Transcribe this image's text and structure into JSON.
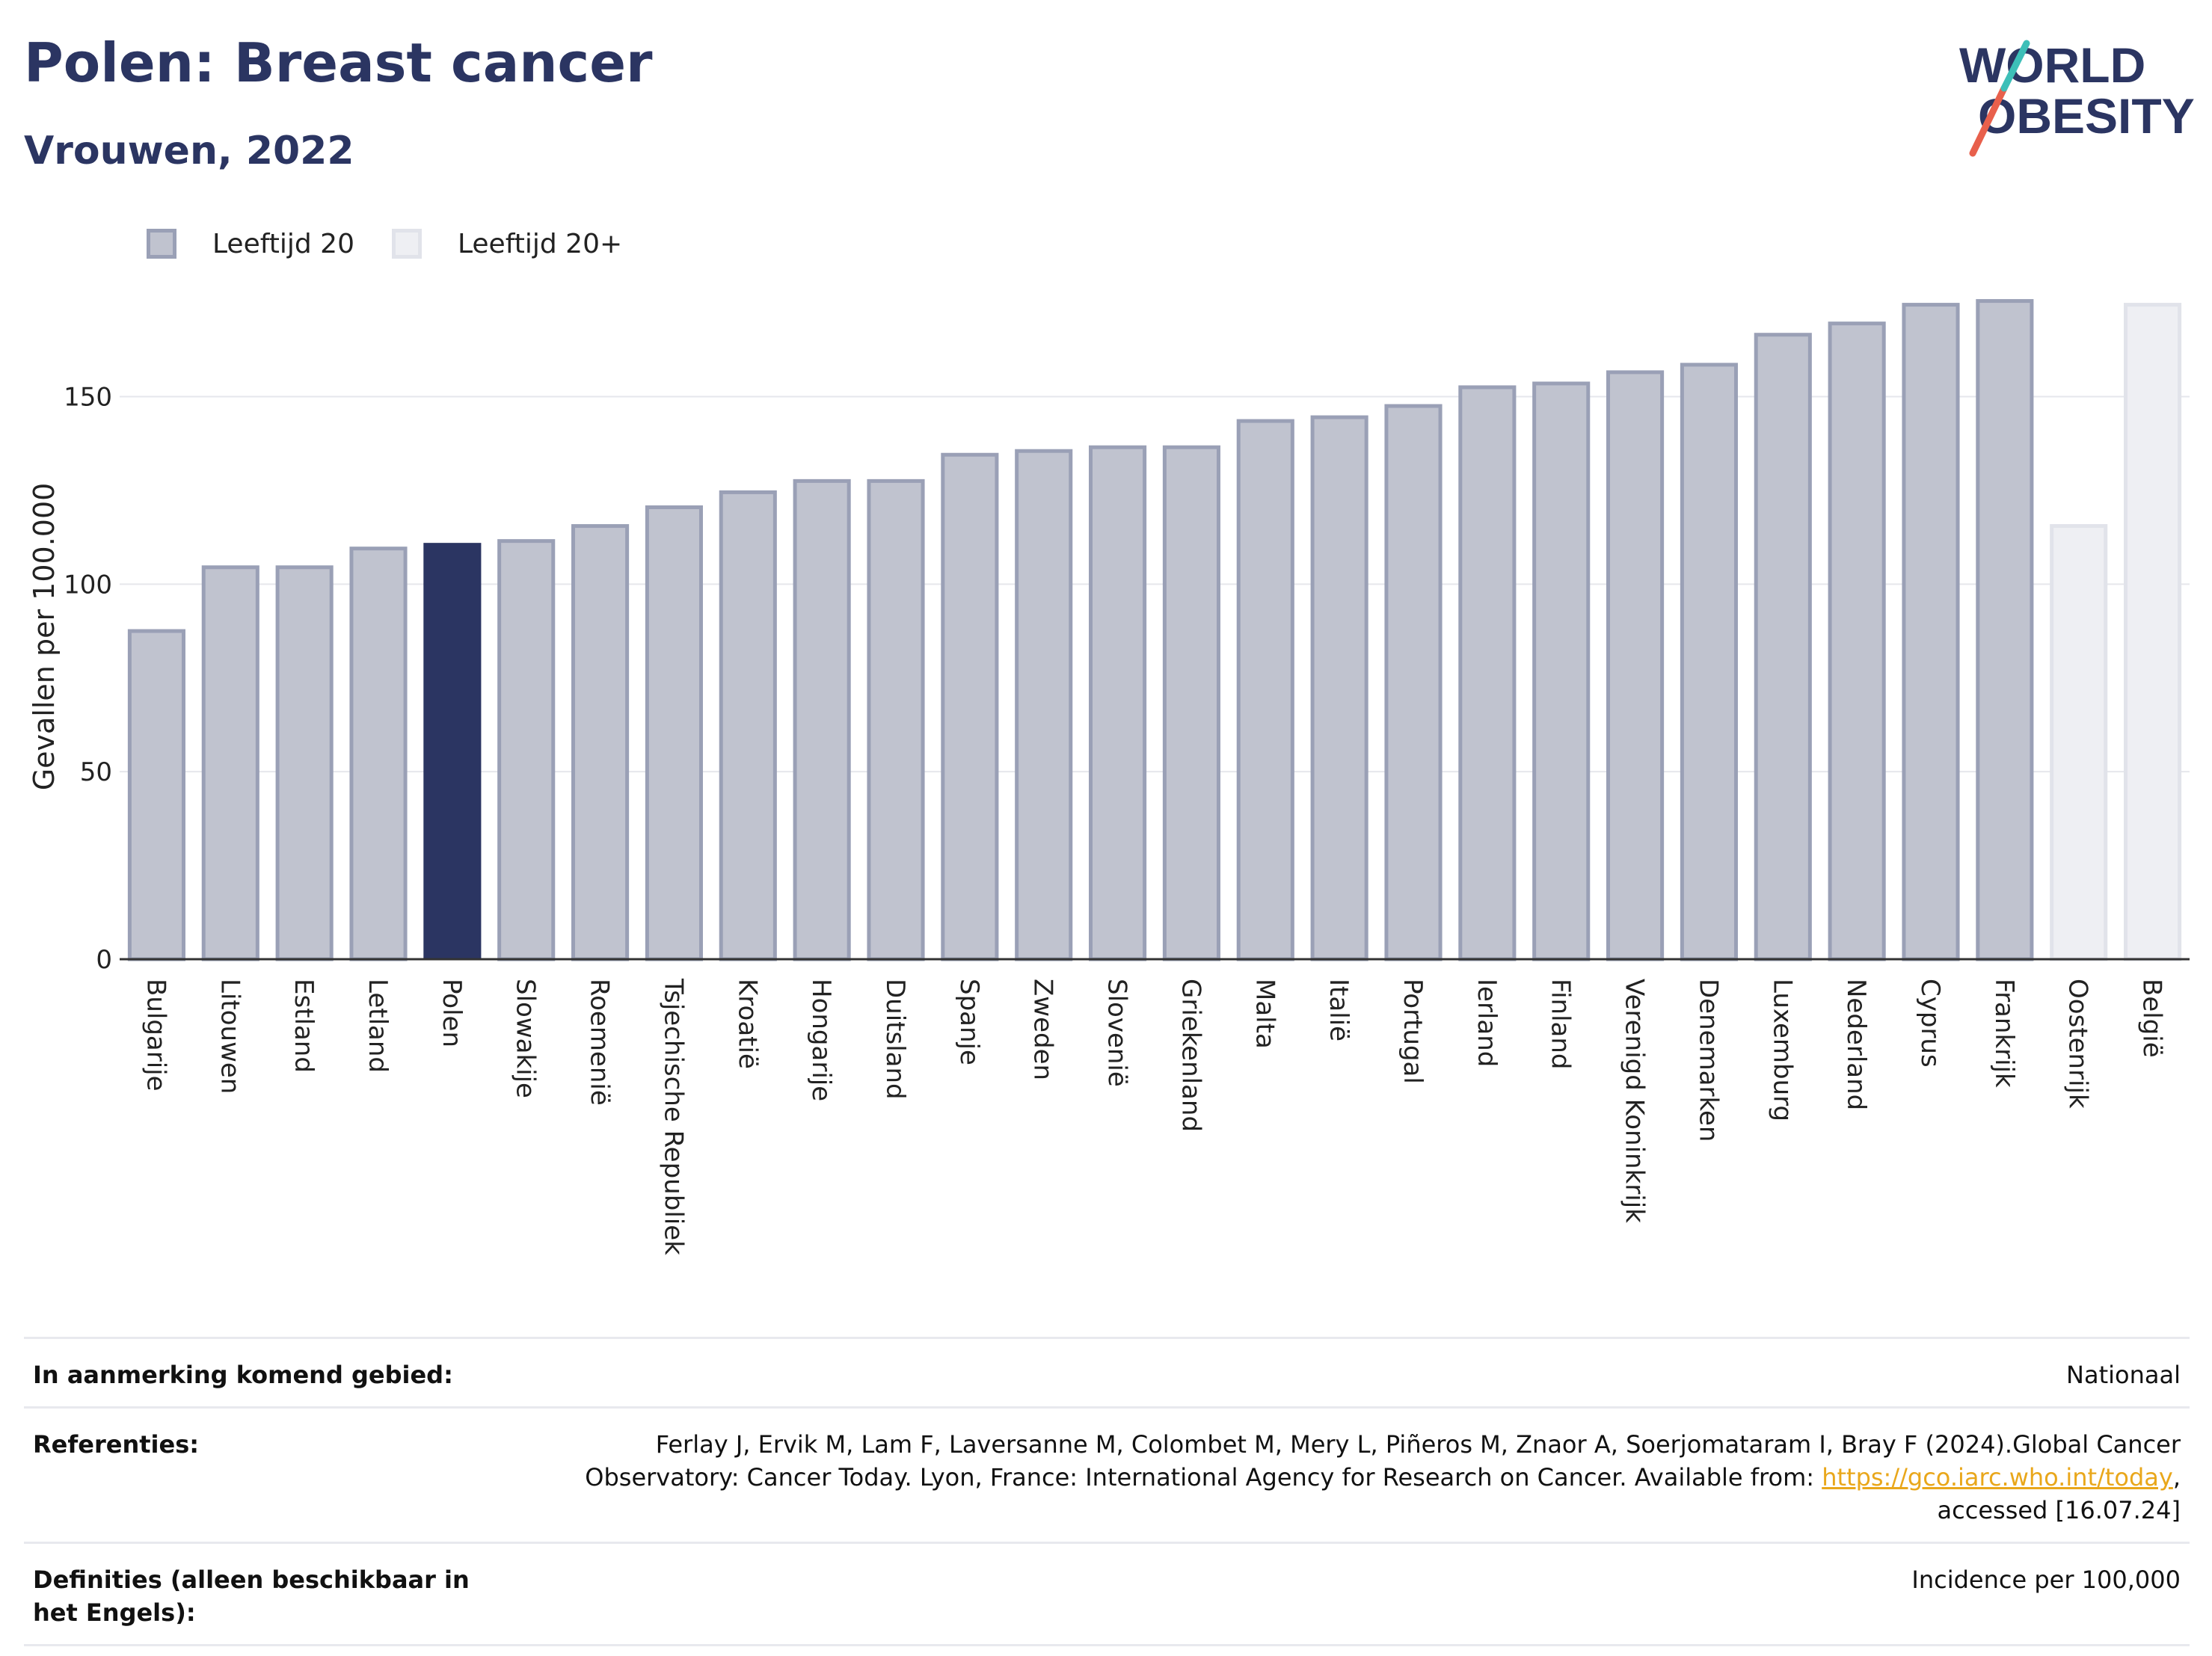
{
  "header": {
    "title": "Polen: Breast cancer",
    "subtitle": "Vrouwen, 2022",
    "logo_line1": "WORLD",
    "logo_line2": "OBESITY"
  },
  "legend": [
    {
      "label": "Leeftijd 20"
    },
    {
      "label": "Leeftijd 20+"
    }
  ],
  "colors": {
    "highlight": "#2b3562",
    "bar_fill": "#c0c3cf",
    "bar_stroke": "#9aa0b6",
    "bar_light_fill": "#eeeff3",
    "bar_light_stroke": "#e1e3ea",
    "logo_red": "#e8604c",
    "logo_teal": "#3dbfb8"
  },
  "chart_data": {
    "type": "bar",
    "ylabel": "Gevallen per 100.000",
    "xlabel": "",
    "ylim": [
      0,
      180
    ],
    "yticks": [
      0,
      50,
      100,
      150
    ],
    "grid": true,
    "legend_position": "top-left",
    "highlight_category": "Polen",
    "categories": [
      "Bulgarije",
      "Litouwen",
      "Estland",
      "Letland",
      "Polen",
      "Slowakije",
      "Roemenië",
      "Tsjechische Republiek",
      "Kroatië",
      "Hongarije",
      "Duitsland",
      "Spanje",
      "Zweden",
      "Slovenië",
      "Griekenland",
      "Malta",
      "Italië",
      "Portugal",
      "Ierland",
      "Finland",
      "Verenigd Koninkrijk",
      "Denemarken",
      "Luxemburg",
      "Nederland",
      "Cyprus",
      "Frankrijk",
      "Oostenrijk",
      "België"
    ],
    "values": [
      88,
      105,
      105,
      110,
      111,
      112,
      116,
      121,
      125,
      128,
      128,
      135,
      136,
      137,
      137,
      144,
      145,
      148,
      153,
      154,
      157,
      159,
      167,
      170,
      175,
      176,
      116,
      175
    ],
    "series_index": [
      0,
      0,
      0,
      0,
      0,
      0,
      0,
      0,
      0,
      0,
      0,
      0,
      0,
      0,
      0,
      0,
      0,
      0,
      0,
      0,
      0,
      0,
      0,
      0,
      0,
      0,
      1,
      1
    ]
  },
  "info": {
    "area_label": "In aanmerking komend gebied:",
    "area_value": "Nationaal",
    "ref_label": "Referenties:",
    "ref_text1": "Ferlay J, Ervik M, Lam F, Laversanne M, Colombet M, Mery L, Piñeros M, Znaor A, Soerjomataram I, Bray F (2024).Global Cancer Observatory: Cancer Today. Lyon, France: International Agency for Research on Cancer. Available from: ",
    "ref_link": "https://gco.iarc.who.int/today",
    "ref_text2": ", accessed [16.07.24]",
    "def_label": "Definities (alleen beschikbaar in het Engels):",
    "def_value": "Incidence per 100,000"
  }
}
